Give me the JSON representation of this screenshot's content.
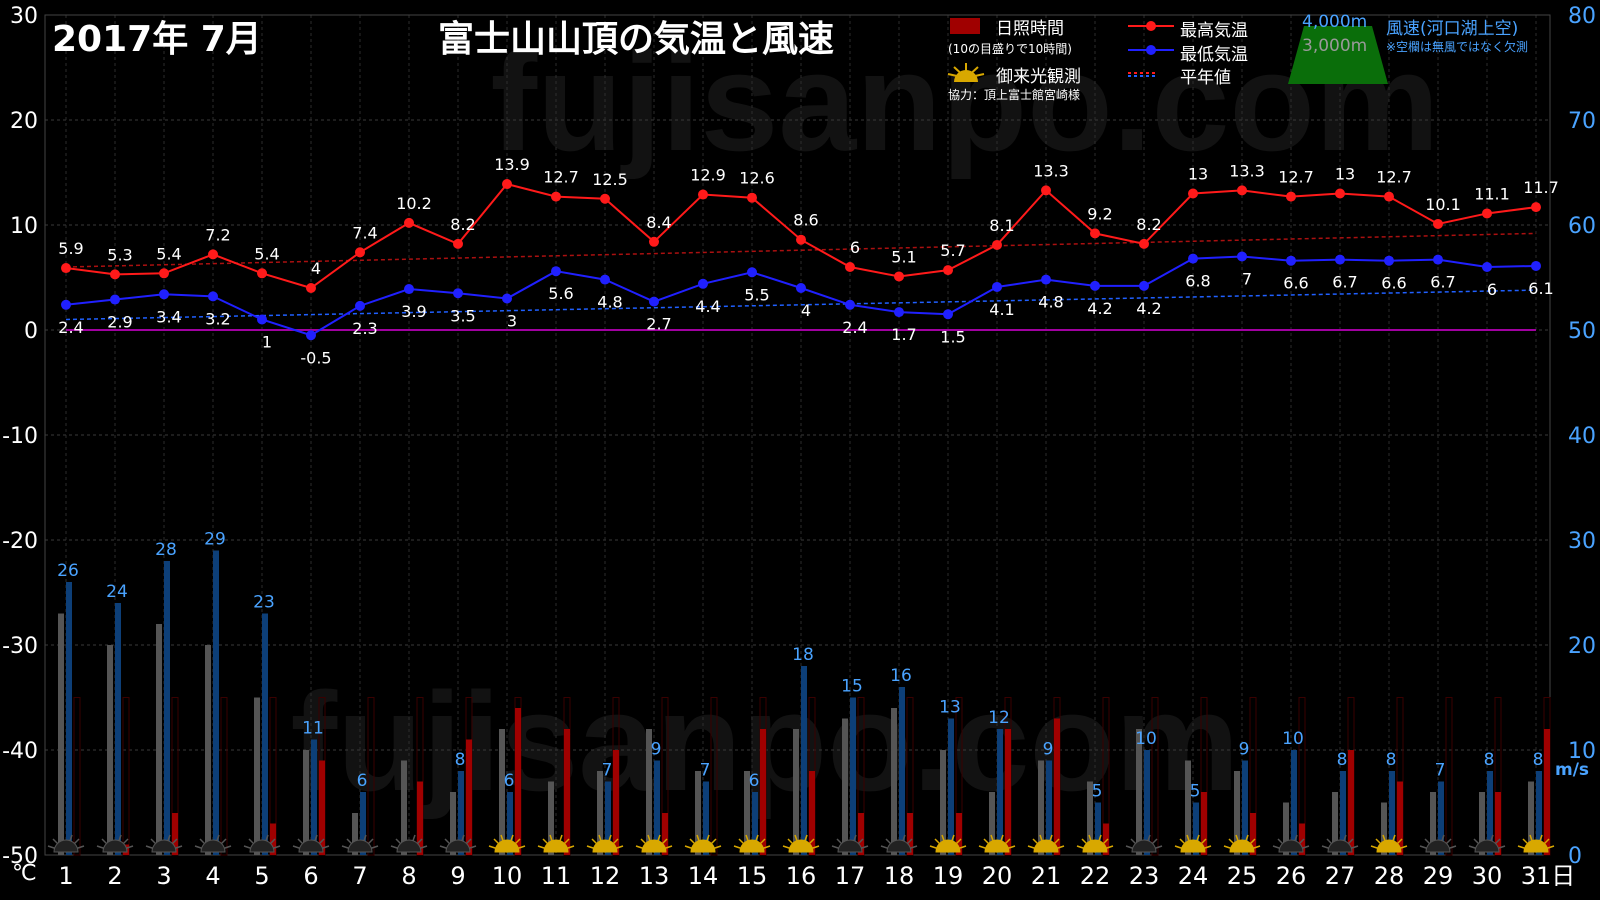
{
  "header": {
    "period": "2017年  7月",
    "title": "富士山山頂の気温と風速"
  },
  "legend": {
    "sunshine": "日照時間",
    "sunshine_note": "(10の目盛りで10時間)",
    "sunrise": "御来光観測",
    "credit": "協力：頂上富士館宮崎様",
    "max_temp": "最高気温",
    "min_temp": "最低気温",
    "normal": "平年値",
    "alt_4000": "4,000m",
    "alt_3000": "3,000m",
    "wind": "風速(河口湖上空)",
    "wind_note": "※空欄は無風ではなく欠測"
  },
  "watermark": "fujisanpo.com",
  "colors": {
    "max_temp": "#ff1a1a",
    "min_temp": "#2020ff",
    "sunshine": "#a00000",
    "wind_4000": "#0d3f78",
    "wind_3000": "#555555",
    "zero_line": "#a000a0",
    "axis_right": "#4aa3ff",
    "mountain": "#0a6e0a"
  },
  "chart_data": {
    "type": "line",
    "x": [
      1,
      2,
      3,
      4,
      5,
      6,
      7,
      8,
      9,
      10,
      11,
      12,
      13,
      14,
      15,
      16,
      17,
      18,
      19,
      20,
      21,
      22,
      23,
      24,
      25,
      26,
      27,
      28,
      29,
      30,
      31
    ],
    "x_tick_labels": [
      "1",
      "2",
      "3",
      "4",
      "5",
      "6",
      "7",
      "8",
      "9",
      "10",
      "11",
      "12",
      "13",
      "14",
      "15",
      "16",
      "17",
      "18",
      "19",
      "20",
      "21",
      "22",
      "23",
      "24",
      "25",
      "26",
      "27",
      "28",
      "29",
      "30",
      "31日"
    ],
    "y_left_ticks": [
      "30",
      "20",
      "10",
      "0",
      "-10",
      "-20",
      "-30",
      "-40",
      "-50"
    ],
    "y_left_unit": "℃",
    "y_left_range": [
      -50,
      30
    ],
    "y_right_ticks": [
      "80",
      "70",
      "60",
      "50",
      "40",
      "30",
      "20",
      "10",
      "0"
    ],
    "y_right_unit": "m/s",
    "y_right_range": [
      0,
      80
    ],
    "grid": true,
    "series": [
      {
        "name": "最高気温",
        "values": [
          5.9,
          5.3,
          5.4,
          7.2,
          5.4,
          4,
          7.4,
          10.2,
          8.2,
          13.9,
          12.7,
          12.5,
          8.4,
          12.9,
          12.6,
          8.6,
          6,
          5.1,
          5.7,
          8.1,
          13.3,
          9.2,
          8.2,
          13,
          13.3,
          12.7,
          13,
          12.7,
          10.1,
          11.1,
          11.7
        ]
      },
      {
        "name": "最低気温",
        "values": [
          2.4,
          2.9,
          3.4,
          3.2,
          1,
          -0.5,
          2.3,
          3.9,
          3.5,
          3,
          5.6,
          4.8,
          2.7,
          4.4,
          5.5,
          4,
          2.4,
          1.7,
          1.5,
          4.1,
          4.8,
          4.2,
          4.2,
          6.8,
          7,
          6.6,
          6.7,
          6.6,
          6.7,
          6,
          6.1
        ]
      },
      {
        "name": "平年値",
        "max_range": [
          6.0,
          9.2
        ],
        "min_range": [
          1.0,
          3.8
        ]
      },
      {
        "name": "4,000m",
        "values": [
          26,
          24,
          28,
          29,
          23,
          11,
          6,
          null,
          8,
          6,
          null,
          7,
          9,
          7,
          6,
          18,
          15,
          16,
          13,
          12,
          9,
          5,
          10,
          5,
          9,
          10,
          8,
          8,
          7,
          8,
          8
        ]
      },
      {
        "name": "3,000m",
        "values": [
          23,
          20,
          22,
          20,
          15,
          10,
          4,
          9,
          6,
          12,
          7,
          8,
          12,
          8,
          8,
          12,
          13,
          14,
          10,
          6,
          9,
          7,
          12,
          9,
          8,
          5,
          6,
          5,
          6,
          6,
          7
        ]
      },
      {
        "name": "日照時間",
        "values": [
          0,
          1,
          4,
          0,
          3,
          9,
          0,
          7,
          11,
          14,
          12,
          10,
          4,
          0,
          12,
          8,
          4,
          4,
          4,
          12,
          13,
          3,
          0,
          6,
          4,
          3,
          10,
          7,
          0,
          6,
          12
        ]
      },
      {
        "name": "御来光観測",
        "values": [
          0,
          0,
          0,
          0,
          0,
          0,
          0,
          0,
          0,
          1,
          1,
          1,
          1,
          1,
          1,
          1,
          0,
          0,
          1,
          1,
          1,
          1,
          0,
          1,
          1,
          0,
          0,
          1,
          0,
          0,
          1
        ]
      }
    ]
  }
}
